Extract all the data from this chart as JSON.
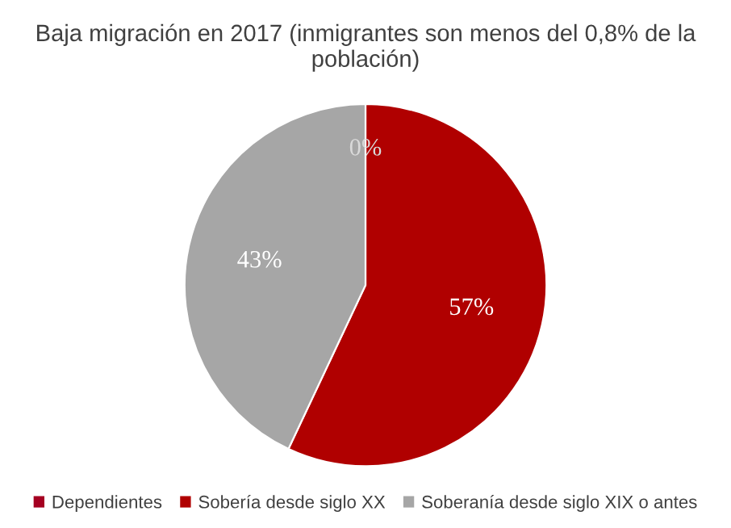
{
  "chart_data": {
    "type": "pie",
    "title": "Baja migración en 2017 (inmigrantes son menos del 0,8% de la población)",
    "categories": [
      "Dependientes",
      "Sobería desde siglo XX",
      "Soberanía desde siglo XIX o antes"
    ],
    "values": [
      0,
      57,
      43
    ],
    "colors": [
      "#a50021",
      "#b00000",
      "#a6a6a6"
    ],
    "value_labels": [
      "0%",
      "57%",
      "43%"
    ],
    "legend": "bottom"
  }
}
